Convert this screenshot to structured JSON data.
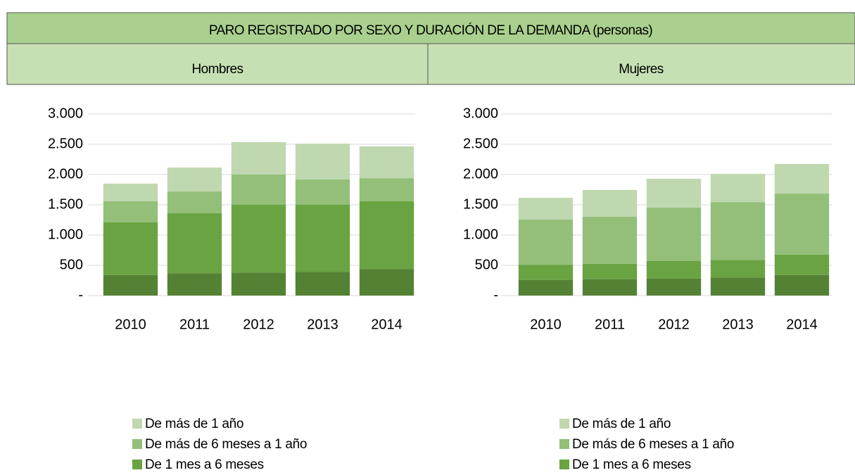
{
  "header": {
    "title": "PARO REGISTRADO POR SEXO Y DURACIÓN DE LA DEMANDA (personas)"
  },
  "chart_data": [
    {
      "type": "bar",
      "stacked": true,
      "title": "Hombres",
      "categories": [
        "2010",
        "2011",
        "2012",
        "2013",
        "2014"
      ],
      "series": [
        {
          "color": "#548235",
          "values": [
            340,
            370,
            380,
            390,
            440
          ]
        },
        {
          "name": "De 1 mes a 6 meses",
          "color": "#6aa342",
          "values": [
            870,
            990,
            1120,
            1110,
            1120
          ]
        },
        {
          "name": "De más de 6 meses a 1 año",
          "color": "#93bf79",
          "values": [
            350,
            360,
            500,
            420,
            380
          ]
        },
        {
          "name": "De más de 1 año",
          "color": "#bfd8b0",
          "values": [
            290,
            395,
            535,
            590,
            525
          ]
        }
      ],
      "ylim": [
        0,
        3000
      ],
      "yticks": [
        {
          "value": 0,
          "label": "-"
        },
        500,
        {
          "value": 1000,
          "label": "1.000"
        },
        {
          "value": 1500,
          "label": "1.500"
        },
        {
          "value": 2000,
          "label": "2.000"
        },
        {
          "value": 2500,
          "label": "2.500"
        },
        {
          "value": 3000,
          "label": "3.000"
        }
      ],
      "grid": true
    },
    {
      "type": "bar",
      "stacked": true,
      "title": "Mujeres",
      "categories": [
        "2010",
        "2011",
        "2012",
        "2013",
        "2014"
      ],
      "series": [
        {
          "color": "#548235",
          "values": [
            260,
            270,
            280,
            300,
            340
          ]
        },
        {
          "name": "De 1 mes a 6 meses",
          "color": "#6aa342",
          "values": [
            250,
            255,
            290,
            290,
            335
          ]
        },
        {
          "name": "De más de 6 meses a 1 año",
          "color": "#93bf79",
          "values": [
            745,
            780,
            885,
            955,
            1010
          ]
        },
        {
          "name": "De más de 1 año",
          "color": "#bfd8b0",
          "values": [
            360,
            440,
            475,
            465,
            490
          ]
        }
      ],
      "ylim": [
        0,
        3000
      ],
      "yticks": [
        {
          "value": 0,
          "label": "-"
        },
        500,
        {
          "value": 1000,
          "label": "1.000"
        },
        {
          "value": 1500,
          "label": "1.500"
        },
        {
          "value": 2000,
          "label": "2.000"
        },
        {
          "value": 2500,
          "label": "2.500"
        },
        {
          "value": 3000,
          "label": "3.000"
        }
      ],
      "grid": true
    }
  ]
}
